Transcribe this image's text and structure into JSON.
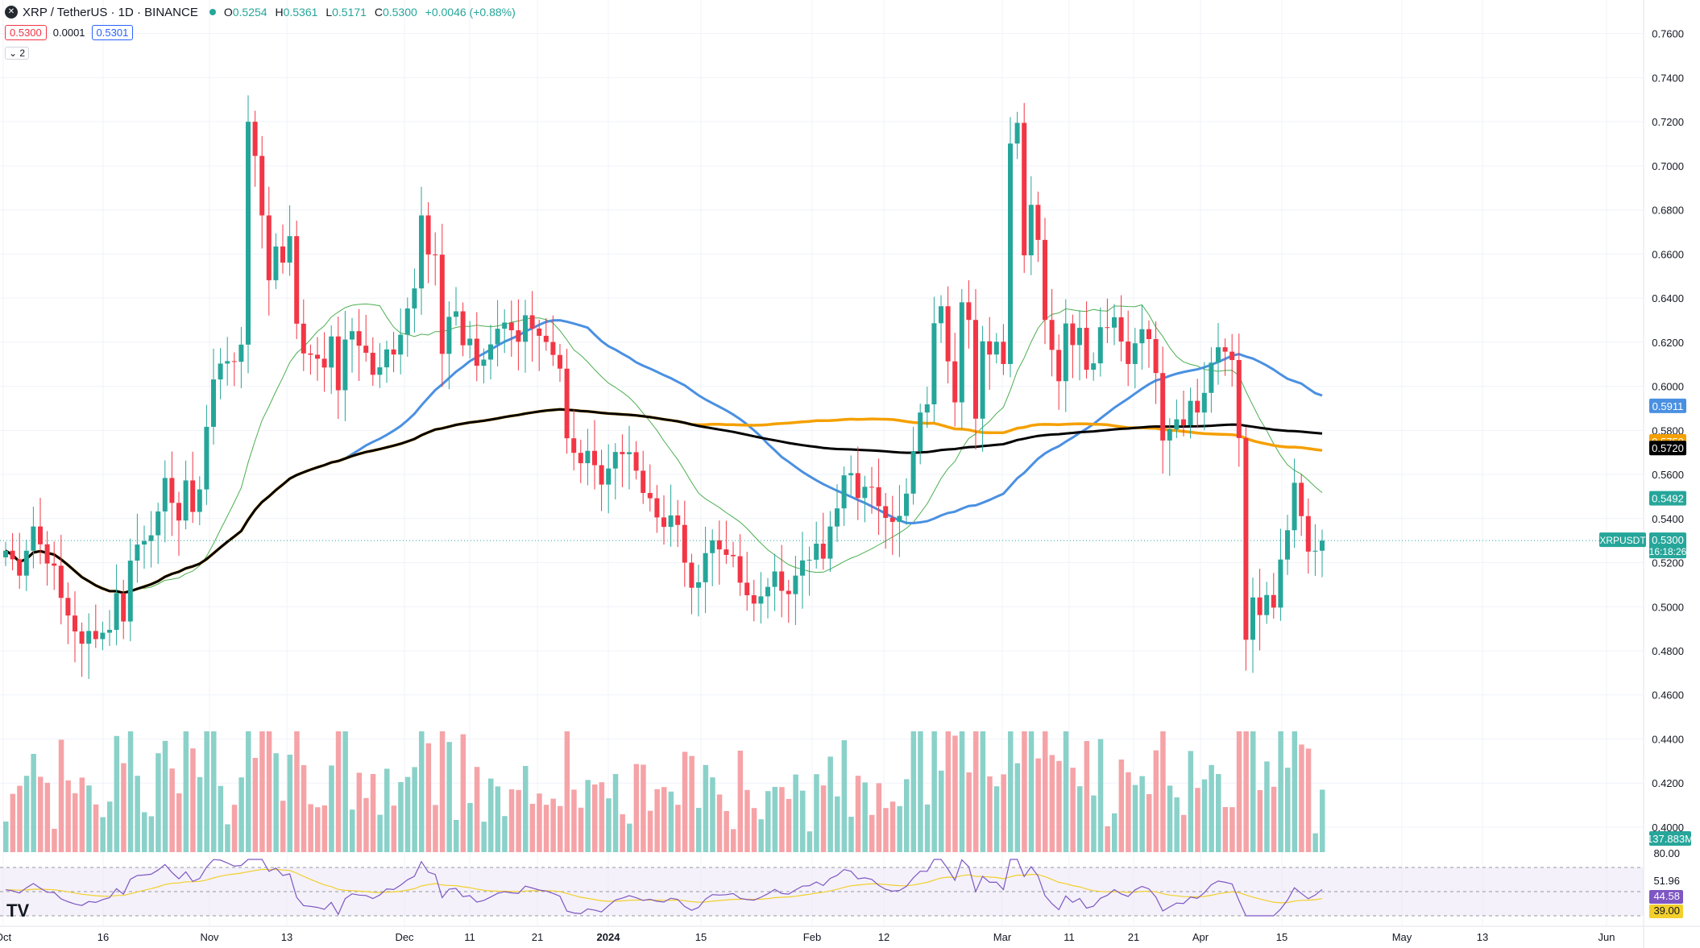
{
  "header": {
    "symbol": "XRP / TetherUS · 1D · BINANCE",
    "open_label": "O",
    "open": "0.5254",
    "high_label": "H",
    "high": "0.5361",
    "low_label": "L",
    "low": "0.5171",
    "close_label": "C",
    "close": "0.5300",
    "change": "+0.0046 (+0.88%)",
    "sell_price": "0.5300",
    "spread": "0.0001",
    "buy_price": "0.5301",
    "indicator_count": "2"
  },
  "colors": {
    "up": "#26a69a",
    "down": "#f23645",
    "up_vol": "#8ad1c9",
    "down_vol": "#f5a3a7",
    "ma_blue": "#4a90e2",
    "ma_orange": "#f5a000",
    "ma_black": "#000000",
    "ma_green": "#4caf50",
    "rsi_line": "#7e57c2",
    "rsi_ma": "#f2cf2b",
    "grid": "#f0f3fa",
    "text": "#131722"
  },
  "chart_data": {
    "type": "candlestick",
    "title": "XRP / TetherUS · 1D · BINANCE",
    "x_tick_labels": [
      "Oct",
      "16",
      "Nov",
      "13",
      "Dec",
      "11",
      "21",
      "2024",
      "15",
      "Feb",
      "12",
      "Mar",
      "11",
      "21",
      "Apr",
      "15",
      "May",
      "13",
      "Jun"
    ],
    "y_tick_labels": [
      "0.7600",
      "0.7400",
      "0.7200",
      "0.7000",
      "0.6800",
      "0.6600",
      "0.6400",
      "0.6200",
      "0.6000",
      "0.5800",
      "0.5600",
      "0.5400",
      "0.5200",
      "0.5000",
      "0.4800",
      "0.4600",
      "0.4400",
      "0.4200",
      "0.4000"
    ],
    "ylim": [
      0.385,
      0.765
    ],
    "last_price": 0.53,
    "last_price_label": "XRPUSDT",
    "last_price_value": "0.5300",
    "countdown": "16:18:26",
    "price_tags": [
      {
        "value": "0.5911",
        "color": "#4a90e2"
      },
      {
        "value": "0.5750",
        "color": "#f5a000"
      },
      {
        "value": "0.5720",
        "color": "#000000"
      },
      {
        "value": "0.5492",
        "color": "#26a69a"
      }
    ],
    "volume_label": "137.883M",
    "rsi_levels": [
      "80.00",
      "51.96",
      "44.58",
      "39.00"
    ],
    "closes": [
      0.5254,
      0.5215,
      0.5141,
      0.5254,
      0.5364,
      0.5283,
      0.5196,
      0.5186,
      0.504,
      0.496,
      0.4888,
      0.4832,
      0.489,
      0.4853,
      0.4882,
      0.4895,
      0.5062,
      0.4933,
      0.5209,
      0.5282,
      0.5298,
      0.5324,
      0.5432,
      0.5584,
      0.5471,
      0.5391,
      0.5573,
      0.543,
      0.5532,
      0.5816,
      0.6031,
      0.6103,
      0.6114,
      0.6111,
      0.6189,
      0.72,
      0.7045,
      0.6775,
      0.6481,
      0.6634,
      0.6561,
      0.6681,
      0.6284,
      0.6149,
      0.6143,
      0.6125,
      0.6085,
      0.6226,
      0.5982,
      0.6212,
      0.625,
      0.6184,
      0.6152,
      0.6052,
      0.6086,
      0.6167,
      0.6144,
      0.6234,
      0.6353,
      0.6444,
      0.6775,
      0.6598,
      0.6597,
      0.6147,
      0.6315,
      0.634,
      0.6186,
      0.6216,
      0.6093,
      0.6121,
      0.619,
      0.6261,
      0.6289,
      0.6254,
      0.6202,
      0.6322,
      0.6262,
      0.6229,
      0.6201,
      0.6142,
      0.608,
      0.5764,
      0.5698,
      0.5651,
      0.5707,
      0.5642,
      0.5554,
      0.5627,
      0.5702,
      0.5692,
      0.5701,
      0.5617,
      0.5516,
      0.5492,
      0.5405,
      0.5362,
      0.5414,
      0.5371,
      0.52,
      0.5086,
      0.5111,
      0.5243,
      0.5301,
      0.526,
      0.5235,
      0.5229,
      0.5109,
      0.5052,
      0.5014,
      0.5047,
      0.509,
      0.516,
      0.5072,
      0.5057,
      0.5141,
      0.521,
      0.5213,
      0.5286,
      0.5218,
      0.5364,
      0.5446,
      0.5596,
      0.5606,
      0.5493,
      0.5544,
      0.5542,
      0.5456,
      0.5403,
      0.5385,
      0.5412,
      0.5513,
      0.5706,
      0.5881,
      0.5918,
      0.6286,
      0.6363,
      0.6113,
      0.5927,
      0.6381,
      0.6301,
      0.5853,
      0.6204,
      0.6144,
      0.6202,
      0.6101,
      0.7101,
      0.7195,
      0.6594,
      0.6823,
      0.6664,
      0.6301,
      0.6165,
      0.6023,
      0.6285,
      0.6187,
      0.6265,
      0.6075,
      0.6104,
      0.6268,
      0.6266,
      0.6313,
      0.6203,
      0.6101,
      0.6195,
      0.6259,
      0.6214,
      0.606,
      0.5754,
      0.5805,
      0.585,
      0.5823,
      0.5934,
      0.5881,
      0.597,
      0.6107,
      0.6177,
      0.6157,
      0.6119,
      0.5765,
      0.485,
      0.5042,
      0.4962,
      0.5053,
      0.4996,
      0.5214,
      0.5347,
      0.5562,
      0.5411,
      0.525,
      0.5254,
      0.53
    ],
    "moving_averages": [
      {
        "color": "#4a90e2",
        "last": 0.5911
      },
      {
        "color": "#f5a000",
        "last": 0.575
      },
      {
        "color": "#000000",
        "last": 0.572
      },
      {
        "color": "#4caf50",
        "last": 0.5492
      }
    ]
  },
  "brand": "TV"
}
